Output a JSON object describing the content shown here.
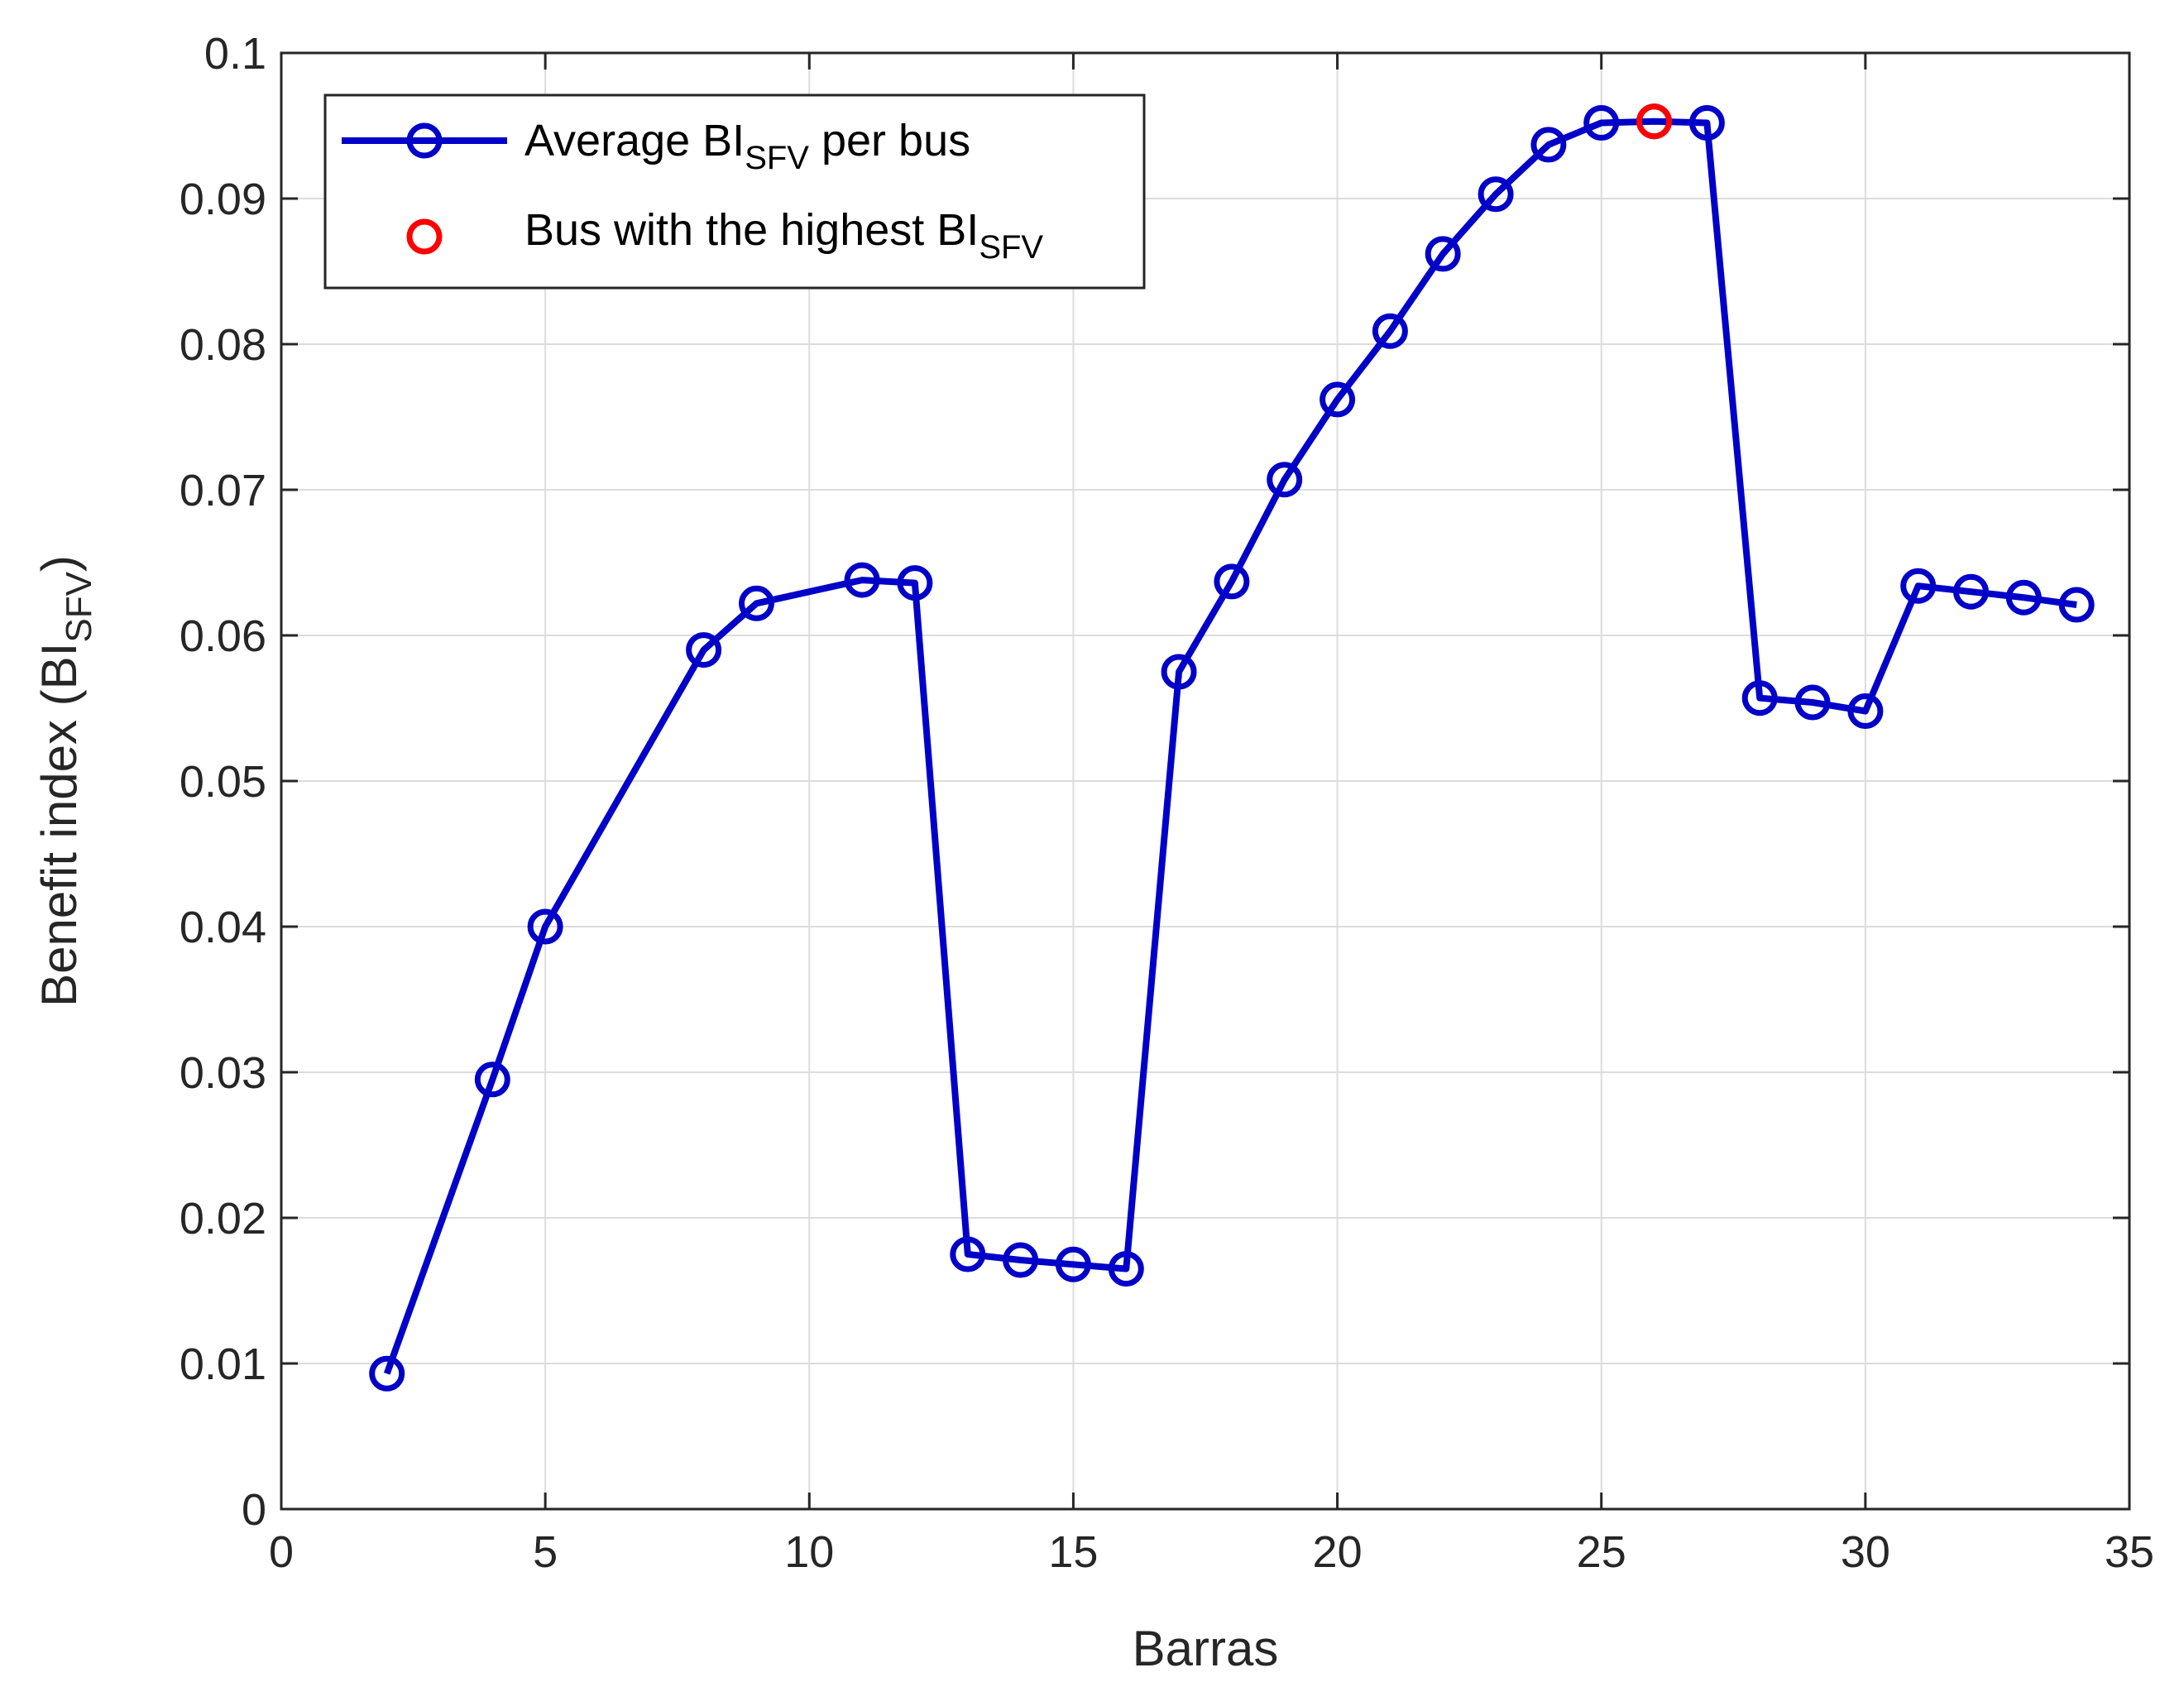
{
  "chart_data": {
    "type": "line",
    "title": "",
    "xlabel": "Barras",
    "ylabel": {
      "main": "Benefit index (BI",
      "sub": "SFV",
      "close": ")"
    },
    "xlim": [
      0,
      35
    ],
    "ylim": [
      0,
      0.1
    ],
    "x_ticks": [
      0,
      5,
      10,
      15,
      20,
      25,
      30,
      35
    ],
    "x_tick_labels": [
      "0",
      "5",
      "10",
      "15",
      "20",
      "25",
      "30",
      "35"
    ],
    "y_ticks": [
      0,
      0.01,
      0.02,
      0.03,
      0.04,
      0.05,
      0.06,
      0.07,
      0.08,
      0.09,
      0.1
    ],
    "y_tick_labels": [
      "0",
      "0.01",
      "0.02",
      "0.03",
      "0.04",
      "0.05",
      "0.06",
      "0.07",
      "0.08",
      "0.09",
      "0.1"
    ],
    "grid": true,
    "legend_position": "top-left",
    "series": [
      {
        "name": {
          "main": "Average BI",
          "sub": "SFV",
          "after": " per bus"
        },
        "style": "line-with-circle-markers",
        "color": "#0000c8",
        "x": [
          2,
          4,
          5,
          8,
          9,
          11,
          12,
          13,
          14,
          15,
          16,
          17,
          18,
          19,
          20,
          21,
          22,
          23,
          24,
          25,
          26,
          27,
          28,
          29,
          30,
          31,
          32,
          33,
          34
        ],
        "y": [
          0.0093,
          0.0295,
          0.04,
          0.059,
          0.0622,
          0.0638,
          0.0636,
          0.0175,
          0.0171,
          0.0168,
          0.0165,
          0.0575,
          0.0637,
          0.0707,
          0.0762,
          0.0809,
          0.0862,
          0.0903,
          0.0937,
          0.0952,
          0.0953,
          0.0952,
          0.0557,
          0.0554,
          0.0548,
          0.0634,
          0.063,
          0.0626,
          0.0621
        ]
      },
      {
        "name": {
          "main": "Bus with the highest BI",
          "sub": "SFV",
          "after": ""
        },
        "style": "circle-marker",
        "color": "#ff0000",
        "x": [
          26
        ],
        "y": [
          0.0953
        ]
      }
    ]
  }
}
